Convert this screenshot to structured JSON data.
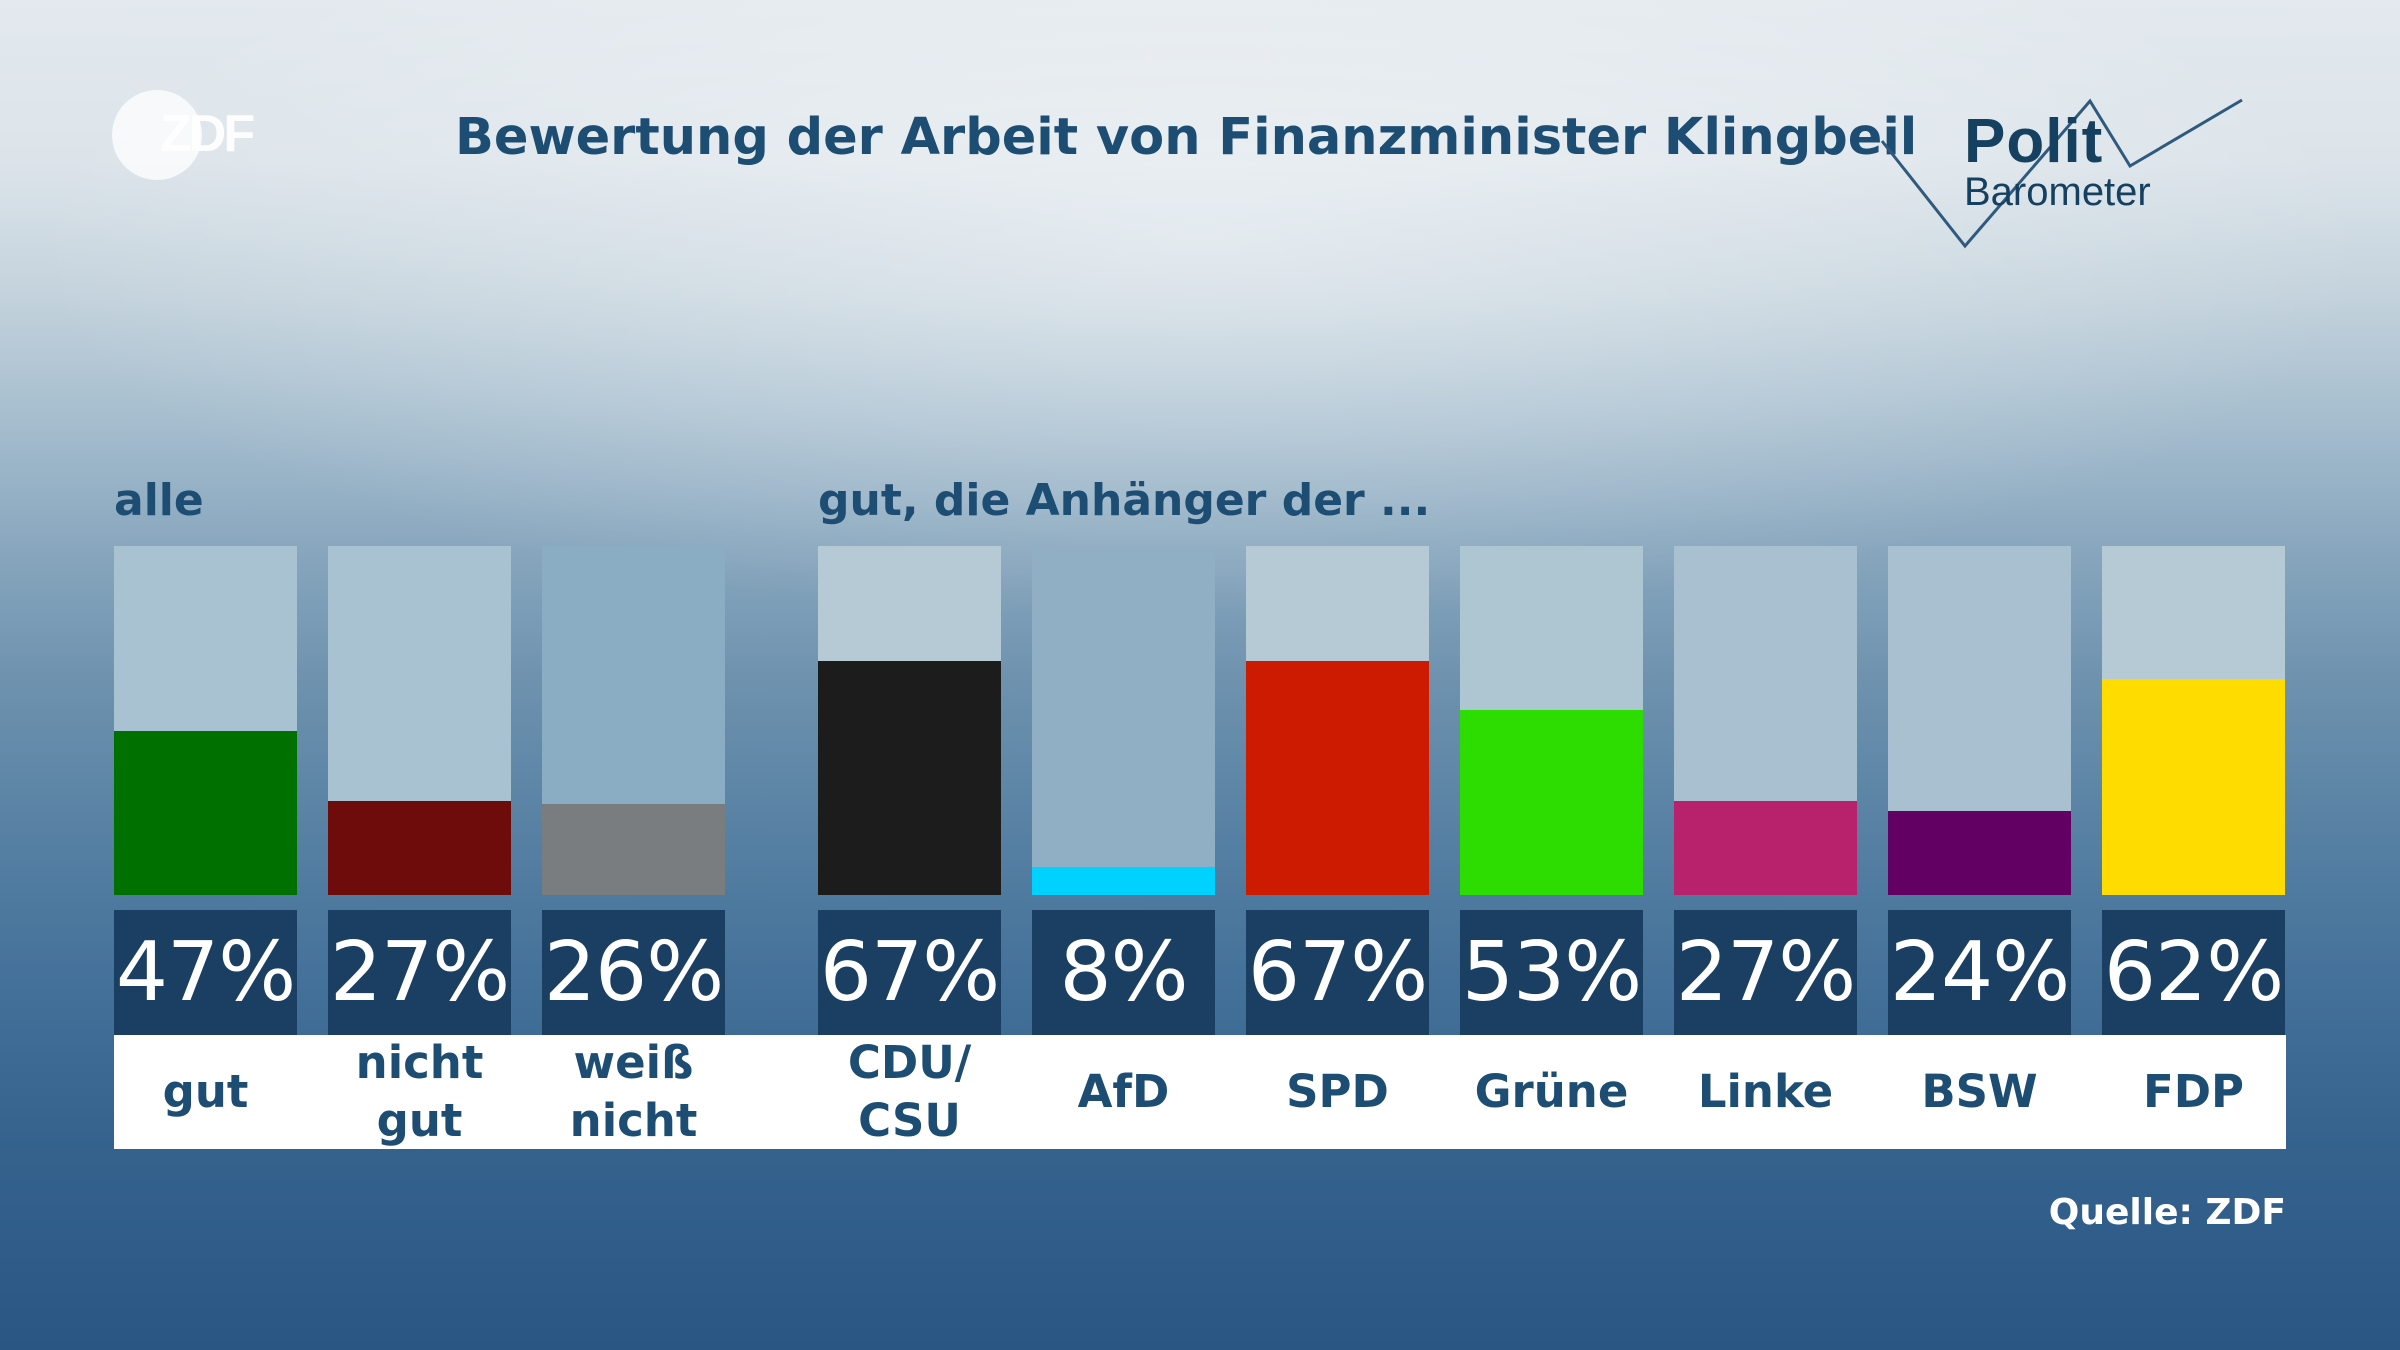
{
  "header": {
    "brand": "ZDF",
    "title": "Bewertung der Arbeit von Finanzminister Klingbeil",
    "show_name_line1": "Polit",
    "show_name_line2": "Barometer"
  },
  "sections": {
    "all_label": "alle",
    "supporters_label": "gut, die Anhänger der ..."
  },
  "chart_data": {
    "type": "bar",
    "title": "Bewertung der Arbeit von Finanzminister Klingbeil",
    "ylim": [
      0,
      100
    ],
    "groups": [
      {
        "label": "alle",
        "categories": [
          "gut",
          "nicht gut",
          "weiß nicht"
        ],
        "values": [
          47,
          27,
          26
        ],
        "colors": [
          "#007000",
          "#6e0b0b",
          "#7a7d80"
        ],
        "track_colors": [
          "#a9c2d2",
          "#a9c2d2",
          "#8aadc4"
        ]
      },
      {
        "label": "gut, die Anhänger der ...",
        "categories": [
          "CDU/ CSU",
          "AfD",
          "SPD",
          "Grüne",
          "Linke",
          "BSW",
          "FDP"
        ],
        "values": [
          67,
          8,
          67,
          53,
          27,
          24,
          62
        ],
        "colors": [
          "#1c1c1c",
          "#00d2ff",
          "#cc1b00",
          "#2ddc00",
          "#b8216b",
          "#620063",
          "#ffdc00"
        ],
        "track_colors": [
          "#b6cad6",
          "#90afc4",
          "#b6cad6",
          "#aec5d2",
          "#a8c0d0",
          "#a8c0d0",
          "#b6cad6"
        ]
      }
    ],
    "value_labels": [
      "47%",
      "27%",
      "26%",
      "67%",
      "8%",
      "67%",
      "53%",
      "27%",
      "24%",
      "62%"
    ]
  },
  "footer": {
    "source": "Quelle: ZDF"
  }
}
